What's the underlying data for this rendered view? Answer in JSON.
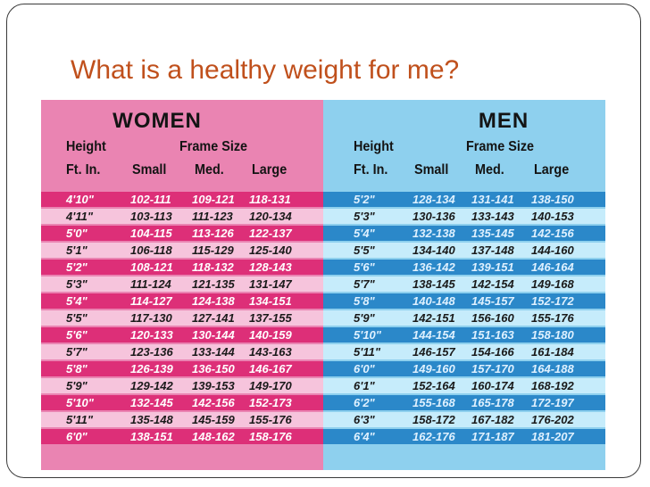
{
  "slide": {
    "title": "What is a healthy weight for me?"
  },
  "colors": {
    "title": "#c0501c",
    "women_panel": "#ea84b2",
    "women_row_dark": "#dd2f78",
    "women_row_light": "#f6c4dc",
    "men_panel": "#8ed0ee",
    "men_row_dark": "#2b88c9",
    "men_row_light": "#c6ecfb"
  },
  "women": {
    "title": "WOMEN",
    "header": {
      "height": "Height",
      "frame_size": "Frame Size",
      "ft_in": "Ft. In.",
      "small": "Small",
      "medium": "Med.",
      "large": "Large"
    },
    "rows": [
      {
        "height": "4'10\"",
        "small": "102-111",
        "medium": "109-121",
        "large": "118-131"
      },
      {
        "height": "4'11\"",
        "small": "103-113",
        "medium": "111-123",
        "large": "120-134"
      },
      {
        "height": "5'0\"",
        "small": "104-115",
        "medium": "113-126",
        "large": "122-137"
      },
      {
        "height": "5'1\"",
        "small": "106-118",
        "medium": "115-129",
        "large": "125-140"
      },
      {
        "height": "5'2\"",
        "small": "108-121",
        "medium": "118-132",
        "large": "128-143"
      },
      {
        "height": "5'3\"",
        "small": "111-124",
        "medium": "121-135",
        "large": "131-147"
      },
      {
        "height": "5'4\"",
        "small": "114-127",
        "medium": "124-138",
        "large": "134-151"
      },
      {
        "height": "5'5\"",
        "small": "117-130",
        "medium": "127-141",
        "large": "137-155"
      },
      {
        "height": "5'6\"",
        "small": "120-133",
        "medium": "130-144",
        "large": "140-159"
      },
      {
        "height": "5'7\"",
        "small": "123-136",
        "medium": "133-144",
        "large": "143-163"
      },
      {
        "height": "5'8\"",
        "small": "126-139",
        "medium": "136-150",
        "large": "146-167"
      },
      {
        "height": "5'9\"",
        "small": "129-142",
        "medium": "139-153",
        "large": "149-170"
      },
      {
        "height": "5'10\"",
        "small": "132-145",
        "medium": "142-156",
        "large": "152-173"
      },
      {
        "height": "5'11\"",
        "small": "135-148",
        "medium": "145-159",
        "large": "155-176"
      },
      {
        "height": "6'0\"",
        "small": "138-151",
        "medium": "148-162",
        "large": "158-176"
      }
    ]
  },
  "men": {
    "title": "MEN",
    "header": {
      "height": "Height",
      "frame_size": "Frame Size",
      "ft_in": "Ft. In.",
      "small": "Small",
      "medium": "Med.",
      "large": "Large"
    },
    "rows": [
      {
        "height": "5'2\"",
        "small": "128-134",
        "medium": "131-141",
        "large": "138-150"
      },
      {
        "height": "5'3\"",
        "small": "130-136",
        "medium": "133-143",
        "large": "140-153"
      },
      {
        "height": "5'4\"",
        "small": "132-138",
        "medium": "135-145",
        "large": "142-156"
      },
      {
        "height": "5'5\"",
        "small": "134-140",
        "medium": "137-148",
        "large": "144-160"
      },
      {
        "height": "5'6\"",
        "small": "136-142",
        "medium": "139-151",
        "large": "146-164"
      },
      {
        "height": "5'7\"",
        "small": "138-145",
        "medium": "142-154",
        "large": "149-168"
      },
      {
        "height": "5'8\"",
        "small": "140-148",
        "medium": "145-157",
        "large": "152-172"
      },
      {
        "height": "5'9\"",
        "small": "142-151",
        "medium": "156-160",
        "large": "155-176"
      },
      {
        "height": "5'10\"",
        "small": "144-154",
        "medium": "151-163",
        "large": "158-180"
      },
      {
        "height": "5'11\"",
        "small": "146-157",
        "medium": "154-166",
        "large": "161-184"
      },
      {
        "height": "6'0\"",
        "small": "149-160",
        "medium": "157-170",
        "large": "164-188"
      },
      {
        "height": "6'1\"",
        "small": "152-164",
        "medium": "160-174",
        "large": "168-192"
      },
      {
        "height": "6'2\"",
        "small": "155-168",
        "medium": "165-178",
        "large": "172-197"
      },
      {
        "height": "6'3\"",
        "small": "158-172",
        "medium": "167-182",
        "large": "176-202"
      },
      {
        "height": "6'4\"",
        "small": "162-176",
        "medium": "171-187",
        "large": "181-207"
      }
    ]
  }
}
